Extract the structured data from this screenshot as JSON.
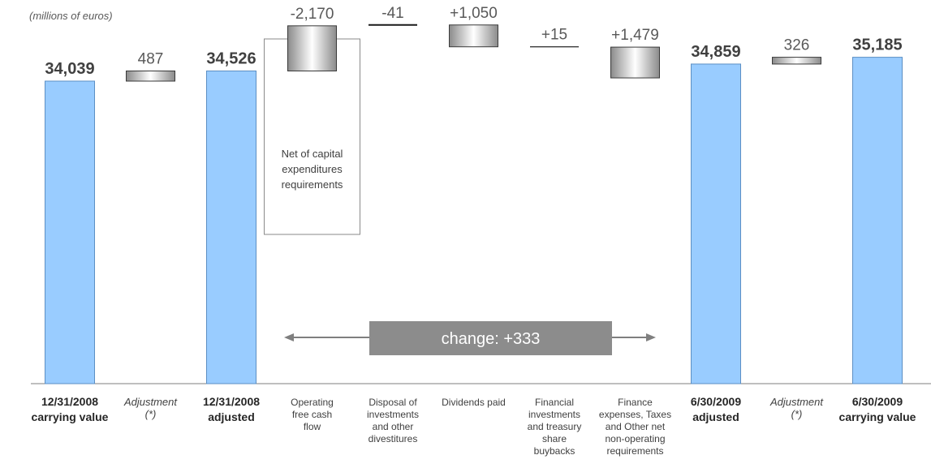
{
  "unit_label": "(millions of euros)",
  "colors": {
    "bar_blue": "#99CCFF",
    "bar_blue_edge": "#5C8FC4",
    "float_edge": "#3a3a3a",
    "change_box": "#8C8C8C",
    "arrow": "#7F7F7F",
    "text_dark": "#404040",
    "text_value": "#595959"
  },
  "chart_data": {
    "type": "waterfall",
    "title": "",
    "ylabel": "",
    "unit": "(millions of euros)",
    "steps": [
      {
        "key": "s0",
        "kind": "total",
        "value": 34039,
        "value_label": "34,039",
        "category_lines": [
          "12/31/2008",
          "carrying value"
        ],
        "category_style": "bold"
      },
      {
        "key": "s1",
        "kind": "delta",
        "value": 487,
        "value_label": "487",
        "category_lines": [
          "Adjustment",
          "(*)"
        ],
        "category_style": "italic"
      },
      {
        "key": "s2",
        "kind": "total",
        "value": 34526,
        "value_label": "34,526",
        "category_lines": [
          "12/31/2008",
          "adjusted"
        ],
        "category_style": "bold"
      },
      {
        "key": "s3",
        "kind": "delta",
        "value": -2170,
        "value_label": "-2,170",
        "category_lines": [
          "Operating",
          "free cash",
          "flow"
        ],
        "category_style": "normal",
        "annotation_lines": [
          "Net of capital",
          "expenditures",
          "requirements"
        ]
      },
      {
        "key": "s4",
        "kind": "delta",
        "value": -41,
        "value_label": "-41",
        "category_lines": [
          "Disposal of",
          "investments",
          "and other",
          "divestitures"
        ],
        "category_style": "normal"
      },
      {
        "key": "s5",
        "kind": "delta",
        "value": 1050,
        "value_label": "+1,050",
        "category_lines": [
          "Dividends paid"
        ],
        "category_style": "normal"
      },
      {
        "key": "s6",
        "kind": "delta",
        "value": 15,
        "value_label": "+15",
        "category_lines": [
          "Financial",
          "investments",
          "and treasury",
          "share",
          "buybacks"
        ],
        "category_style": "normal"
      },
      {
        "key": "s7",
        "kind": "delta",
        "value": 1479,
        "value_label": "+1,479",
        "category_lines": [
          "Finance",
          "expenses, Taxes",
          "and Other net",
          "non-operating",
          "requirements"
        ],
        "category_style": "normal"
      },
      {
        "key": "s8",
        "kind": "total",
        "value": 34859,
        "value_label": "34,859",
        "category_lines": [
          "6/30/2009",
          "adjusted"
        ],
        "category_style": "bold"
      },
      {
        "key": "s9",
        "kind": "delta",
        "value": 326,
        "value_label": "326",
        "category_lines": [
          "Adjustment",
          "(*)"
        ],
        "category_style": "italic"
      },
      {
        "key": "s10",
        "kind": "total",
        "value": 35185,
        "value_label": "35,185",
        "category_lines": [
          "6/30/2009",
          "carrying value"
        ],
        "category_style": "bold"
      }
    ],
    "change_label": "change: +333",
    "grid": false
  }
}
